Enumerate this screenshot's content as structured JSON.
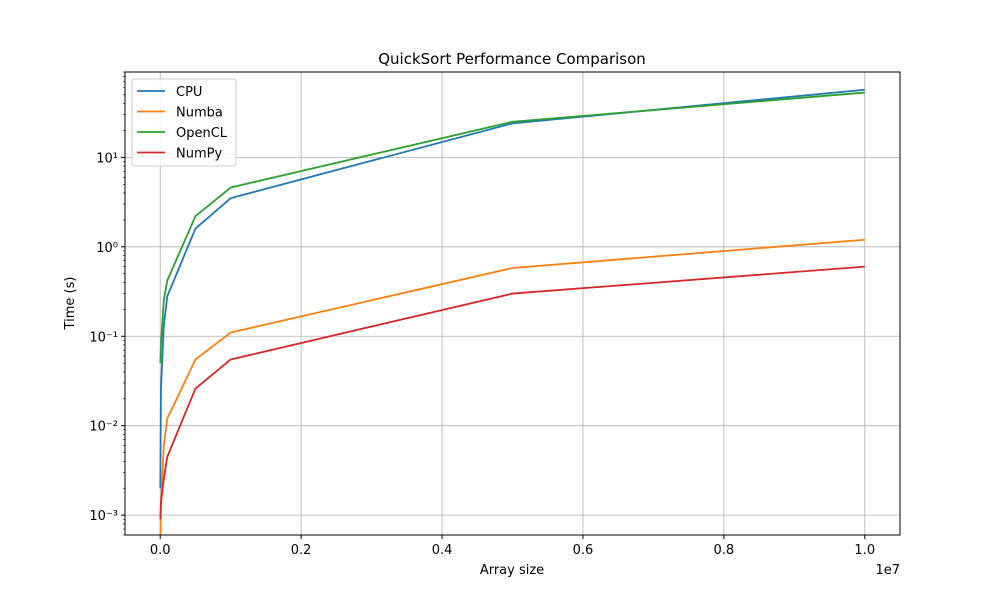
{
  "chart_data": {
    "type": "line",
    "title": "QuickSort Performance Comparison",
    "xlabel": "Array size",
    "ylabel": "Time (s)",
    "x_offset_label": "1e7",
    "yscale": "log",
    "xlim": [
      -500000,
      10500000
    ],
    "ylim": [
      0.0006,
      90
    ],
    "grid": true,
    "legend_position": "upper-left",
    "x_ticks": [
      0,
      2000000,
      4000000,
      6000000,
      8000000,
      10000000
    ],
    "x_tick_labels": [
      "0.0",
      "0.2",
      "0.4",
      "0.6",
      "0.8",
      "1.0"
    ],
    "y_ticks": [
      0.001,
      0.01,
      0.1,
      1,
      10
    ],
    "y_tick_labels": [
      "10⁻³",
      "10⁻²",
      "10⁻¹",
      "10⁰",
      "10¹"
    ],
    "x": [
      1000,
      10000,
      50000,
      100000,
      500000,
      1000000,
      5000000,
      10000000
    ],
    "series": [
      {
        "name": "CPU",
        "color": "#1f77b4",
        "values": [
          0.002,
          0.025,
          0.13,
          0.28,
          1.6,
          3.5,
          24,
          57
        ]
      },
      {
        "name": "Numba",
        "color": "#ff7f0e",
        "values": [
          0.0005,
          0.0012,
          0.006,
          0.012,
          0.055,
          0.11,
          0.58,
          1.2
        ]
      },
      {
        "name": "OpenCL",
        "color": "#2ca02c",
        "values": [
          0.05,
          0.08,
          0.25,
          0.42,
          2.2,
          4.6,
          25,
          53
        ]
      },
      {
        "name": "NumPy",
        "color": "#d62728",
        "values": [
          0.0009,
          0.0014,
          0.0025,
          0.0045,
          0.026,
          0.055,
          0.3,
          0.6
        ]
      }
    ]
  }
}
